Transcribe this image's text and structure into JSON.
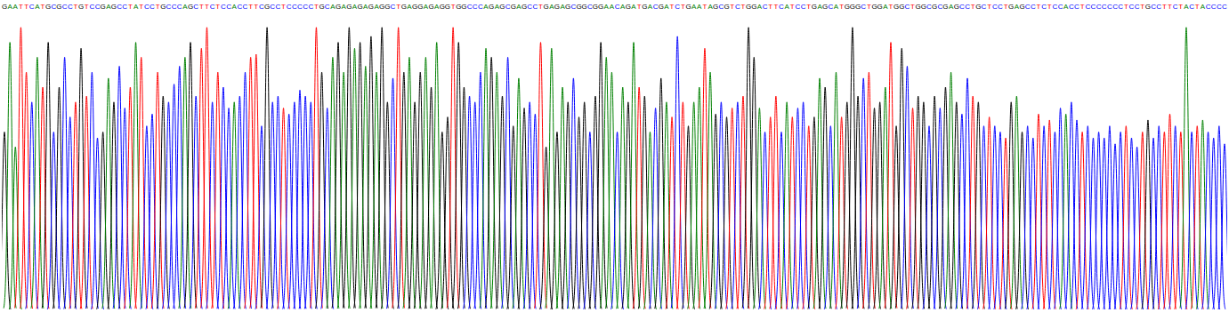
{
  "chart_data": {
    "type": "chromatogram",
    "tick_labels": false,
    "ylim": [
      0,
      100
    ],
    "categories": [
      "G",
      "A",
      "A",
      "T",
      "T",
      "C",
      "A",
      "T",
      "G",
      "C",
      "G",
      "C",
      "C",
      "T",
      "G",
      "T",
      "C",
      "C",
      "G",
      "A",
      "G",
      "C",
      "C",
      "T",
      "A",
      "T",
      "C",
      "C",
      "T",
      "G",
      "C",
      "C",
      "C",
      "A",
      "G",
      "C",
      "T",
      "T",
      "C",
      "T",
      "C",
      "C",
      "A",
      "C",
      "C",
      "T",
      "T",
      "C",
      "G",
      "C",
      "C",
      "T",
      "C",
      "C",
      "C",
      "C",
      "C",
      "T",
      "G",
      "C",
      "A",
      "G",
      "A",
      "G",
      "A",
      "G",
      "A",
      "G",
      "A",
      "G",
      "G",
      "C",
      "T",
      "G",
      "A",
      "G",
      "G",
      "A",
      "G",
      "A",
      "G",
      "G",
      "T",
      "G",
      "G",
      "C",
      "C",
      "C",
      "A",
      "G",
      "A",
      "G",
      "C",
      "G",
      "A",
      "G",
      "C",
      "C",
      "T",
      "G",
      "A",
      "G",
      "A",
      "G",
      "C",
      "G",
      "G",
      "C",
      "G",
      "G",
      "A",
      "A",
      "C",
      "A",
      "G",
      "A",
      "T",
      "G",
      "A",
      "C",
      "G",
      "A",
      "T",
      "C",
      "T",
      "G",
      "A",
      "A",
      "T",
      "A",
      "G",
      "C",
      "G",
      "T",
      "C",
      "T",
      "G",
      "G",
      "A",
      "C",
      "T",
      "T",
      "C",
      "A",
      "T",
      "C",
      "C",
      "T",
      "G",
      "A",
      "G",
      "C",
      "A",
      "T",
      "G",
      "G",
      "G",
      "C",
      "T",
      "G",
      "G",
      "A",
      "T",
      "G",
      "G",
      "C",
      "T",
      "G",
      "G",
      "C",
      "G",
      "C",
      "G",
      "A",
      "G",
      "C",
      "C",
      "T",
      "G",
      "C",
      "T",
      "C",
      "C",
      "T",
      "G",
      "A",
      "G",
      "C",
      "C",
      "T",
      "C",
      "T",
      "C",
      "C",
      "A",
      "C",
      "C",
      "T",
      "C",
      "C",
      "C",
      "C",
      "C",
      "C",
      "C",
      "T",
      "C",
      "C",
      "T",
      "G",
      "C",
      "C",
      "T",
      "T",
      "C",
      "T",
      "A",
      "C",
      "T",
      "A",
      "C",
      "C",
      "C",
      "C"
    ],
    "values": [
      60,
      90,
      55,
      95,
      80,
      70,
      85,
      75,
      90,
      60,
      75,
      85,
      65,
      70,
      88,
      72,
      80,
      58,
      60,
      78,
      70,
      82,
      68,
      75,
      90,
      85,
      62,
      66,
      80,
      72,
      70,
      76,
      82,
      85,
      90,
      72,
      88,
      95,
      70,
      80,
      75,
      68,
      70,
      72,
      80,
      85,
      86,
      62,
      95,
      70,
      72,
      68,
      66,
      70,
      74,
      72,
      70,
      95,
      80,
      68,
      85,
      90,
      80,
      95,
      88,
      90,
      82,
      92,
      80,
      95,
      70,
      78,
      95,
      80,
      85,
      70,
      80,
      85,
      75,
      90,
      60,
      65,
      95,
      90,
      75,
      72,
      70,
      80,
      88,
      85,
      80,
      72,
      85,
      62,
      78,
      68,
      70,
      66,
      90,
      55,
      88,
      60,
      75,
      70,
      78,
      65,
      70,
      60,
      72,
      90,
      85,
      80,
      60,
      75,
      70,
      90,
      75,
      72,
      60,
      68,
      78,
      70,
      65,
      92,
      70,
      62,
      70,
      75,
      88,
      80,
      66,
      70,
      65,
      68,
      70,
      72,
      95,
      85,
      68,
      60,
      65,
      72,
      60,
      70,
      65,
      68,
      70,
      62,
      65,
      78,
      75,
      62,
      80,
      65,
      70,
      95,
      72,
      78,
      80,
      68,
      70,
      75,
      90,
      62,
      88,
      82,
      68,
      72,
      70,
      62,
      72,
      68,
      75,
      80,
      70,
      66,
      78,
      72,
      70,
      62,
      65,
      62,
      60,
      58,
      70,
      72,
      60,
      62,
      58,
      66,
      62,
      64,
      60,
      68,
      66,
      70,
      64,
      60,
      62,
      58,
      60,
      58,
      62,
      56,
      60,
      62,
      58,
      55,
      60,
      64,
      58,
      62,
      60,
      66,
      62,
      60,
      95,
      60,
      62,
      64,
      60,
      58,
      62,
      56
    ],
    "colors": [
      "black",
      "green",
      "green",
      "red",
      "red",
      "blue",
      "green",
      "red",
      "black",
      "blue",
      "black",
      "blue",
      "blue",
      "red",
      "black",
      "red",
      "blue",
      "blue",
      "black",
      "green",
      "black",
      "blue",
      "blue",
      "red",
      "green",
      "red",
      "blue",
      "blue",
      "red",
      "black",
      "blue",
      "blue",
      "blue",
      "green",
      "black",
      "blue",
      "red",
      "red",
      "blue",
      "red",
      "blue",
      "blue",
      "green",
      "blue",
      "blue",
      "red",
      "red",
      "blue",
      "black",
      "blue",
      "blue",
      "red",
      "blue",
      "blue",
      "blue",
      "blue",
      "blue",
      "red",
      "black",
      "blue",
      "green",
      "black",
      "green",
      "black",
      "green",
      "black",
      "green",
      "black",
      "green",
      "black",
      "black",
      "blue",
      "red",
      "black",
      "green",
      "black",
      "black",
      "green",
      "black",
      "green",
      "black",
      "black",
      "red",
      "black",
      "black",
      "blue",
      "blue",
      "blue",
      "green",
      "black",
      "green",
      "black",
      "blue",
      "black",
      "green",
      "black",
      "blue",
      "blue",
      "red",
      "black",
      "green",
      "black",
      "green",
      "black",
      "blue",
      "black",
      "black",
      "blue",
      "black",
      "black",
      "green",
      "green",
      "blue",
      "green",
      "black",
      "green",
      "red",
      "black",
      "green",
      "blue",
      "black",
      "green",
      "red",
      "blue",
      "red",
      "black",
      "green",
      "green",
      "red",
      "green",
      "black",
      "blue",
      "black",
      "red",
      "blue",
      "red",
      "black",
      "black",
      "green",
      "blue",
      "red",
      "red",
      "blue",
      "green",
      "red",
      "blue",
      "blue",
      "red",
      "black",
      "green",
      "black",
      "blue",
      "green",
      "red",
      "black",
      "black",
      "black",
      "blue",
      "red",
      "black",
      "black",
      "green",
      "red",
      "black",
      "black",
      "blue",
      "red",
      "black",
      "black",
      "blue",
      "black",
      "blue",
      "black",
      "green",
      "black",
      "blue",
      "blue",
      "red",
      "black",
      "blue",
      "red",
      "blue",
      "blue",
      "red",
      "black",
      "green",
      "black",
      "blue",
      "blue",
      "red",
      "blue",
      "red",
      "blue",
      "blue",
      "green",
      "blue",
      "blue",
      "red",
      "blue",
      "blue",
      "blue",
      "blue",
      "blue",
      "blue",
      "blue",
      "red",
      "blue",
      "blue",
      "red",
      "black",
      "blue",
      "blue",
      "red",
      "red",
      "blue",
      "red",
      "green",
      "blue",
      "red",
      "green",
      "blue",
      "blue",
      "blue",
      "blue"
    ]
  }
}
